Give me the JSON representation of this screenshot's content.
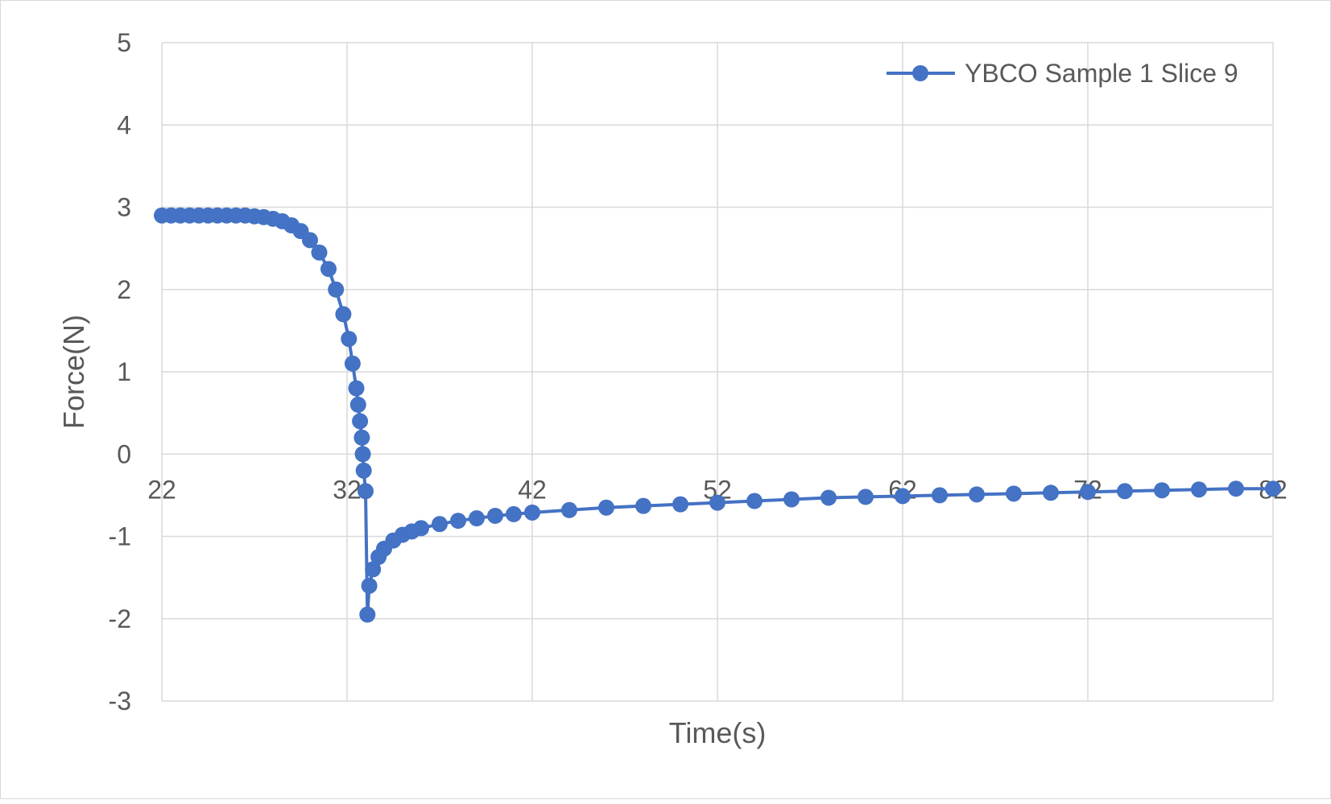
{
  "chart_data": {
    "type": "scatter",
    "title": "",
    "xlabel": "Time(s)",
    "ylabel": "Force(N)",
    "xlim": [
      22,
      82
    ],
    "ylim": [
      -3,
      5
    ],
    "x_ticks": [
      22,
      32,
      42,
      52,
      62,
      72,
      82
    ],
    "y_ticks": [
      5,
      4,
      3,
      2,
      1,
      0,
      -1,
      -2,
      -3
    ],
    "grid": true,
    "legend_position": "top-right",
    "series": [
      {
        "name": "YBCO Sample 1 Slice 9",
        "color": "#4472C4",
        "marker": "circle",
        "line": true,
        "points": [
          [
            22.0,
            2.9
          ],
          [
            22.5,
            2.9
          ],
          [
            23.0,
            2.9
          ],
          [
            23.5,
            2.9
          ],
          [
            24.0,
            2.9
          ],
          [
            24.5,
            2.9
          ],
          [
            25.0,
            2.9
          ],
          [
            25.5,
            2.9
          ],
          [
            26.0,
            2.9
          ],
          [
            26.5,
            2.9
          ],
          [
            27.0,
            2.89
          ],
          [
            27.5,
            2.88
          ],
          [
            28.0,
            2.86
          ],
          [
            28.5,
            2.83
          ],
          [
            29.0,
            2.78
          ],
          [
            29.5,
            2.71
          ],
          [
            30.0,
            2.6
          ],
          [
            30.5,
            2.45
          ],
          [
            31.0,
            2.25
          ],
          [
            31.4,
            2.0
          ],
          [
            31.8,
            1.7
          ],
          [
            32.1,
            1.4
          ],
          [
            32.3,
            1.1
          ],
          [
            32.5,
            0.8
          ],
          [
            32.6,
            0.6
          ],
          [
            32.7,
            0.4
          ],
          [
            32.8,
            0.2
          ],
          [
            32.85,
            0.0
          ],
          [
            32.9,
            -0.2
          ],
          [
            33.0,
            -0.45
          ],
          [
            33.1,
            -1.95
          ],
          [
            33.2,
            -1.6
          ],
          [
            33.4,
            -1.4
          ],
          [
            33.7,
            -1.25
          ],
          [
            34.0,
            -1.15
          ],
          [
            34.5,
            -1.05
          ],
          [
            35.0,
            -0.98
          ],
          [
            35.5,
            -0.94
          ],
          [
            36.0,
            -0.9
          ],
          [
            37.0,
            -0.85
          ],
          [
            38.0,
            -0.81
          ],
          [
            39.0,
            -0.78
          ],
          [
            40.0,
            -0.75
          ],
          [
            41.0,
            -0.73
          ],
          [
            42.0,
            -0.71
          ],
          [
            44.0,
            -0.68
          ],
          [
            46.0,
            -0.65
          ],
          [
            48.0,
            -0.63
          ],
          [
            50.0,
            -0.61
          ],
          [
            52.0,
            -0.59
          ],
          [
            54.0,
            -0.57
          ],
          [
            56.0,
            -0.55
          ],
          [
            58.0,
            -0.53
          ],
          [
            60.0,
            -0.52
          ],
          [
            62.0,
            -0.51
          ],
          [
            64.0,
            -0.5
          ],
          [
            66.0,
            -0.49
          ],
          [
            68.0,
            -0.48
          ],
          [
            70.0,
            -0.47
          ],
          [
            72.0,
            -0.46
          ],
          [
            74.0,
            -0.45
          ],
          [
            76.0,
            -0.44
          ],
          [
            78.0,
            -0.43
          ],
          [
            80.0,
            -0.42
          ],
          [
            82.0,
            -0.42
          ]
        ]
      }
    ]
  }
}
